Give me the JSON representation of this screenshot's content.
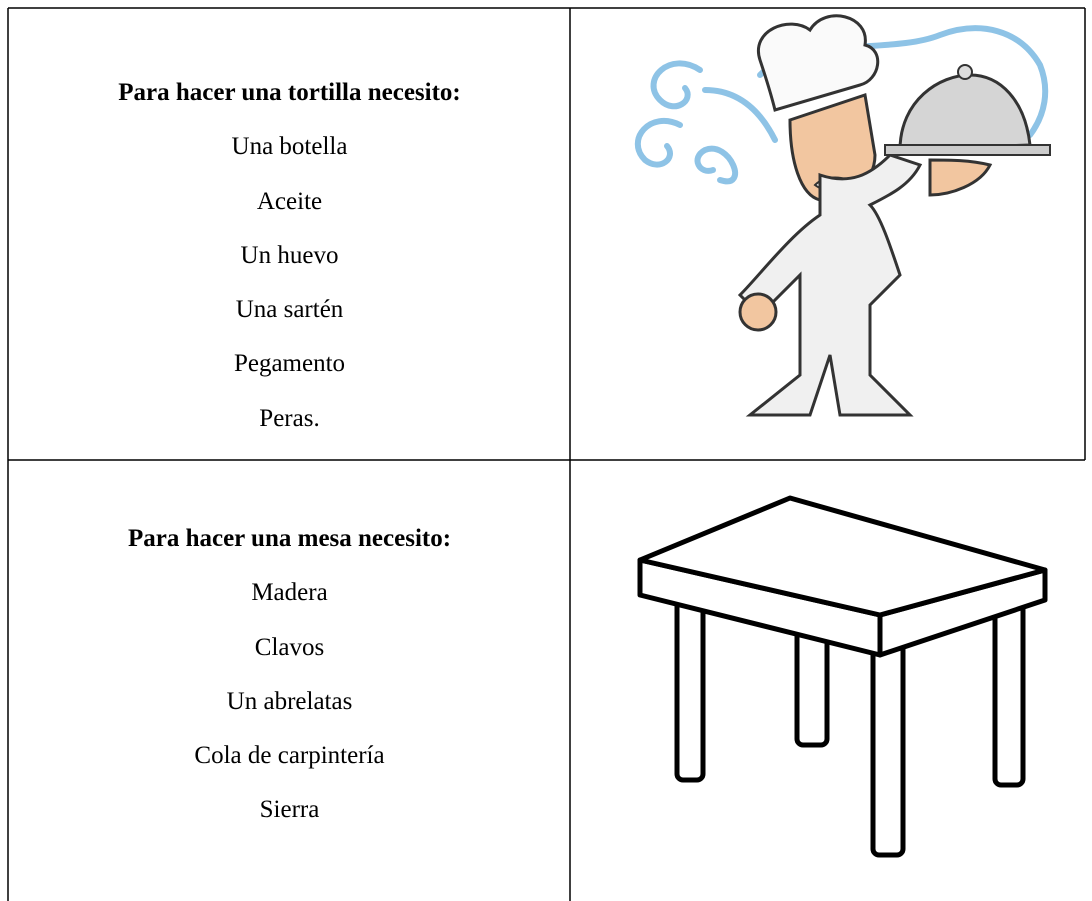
{
  "table": {
    "rows": [
      {
        "title": "Para hacer una tortilla necesito:",
        "items": [
          "Una botella",
          "Aceite",
          "Un huevo",
          "Una sartén",
          "Pegamento",
          "Peras."
        ]
      },
      {
        "title": "Para hacer una mesa necesito:",
        "items": [
          "Madera",
          "Clavos",
          "Un abrelatas",
          "Cola de carpintería",
          "Sierra"
        ]
      }
    ]
  }
}
